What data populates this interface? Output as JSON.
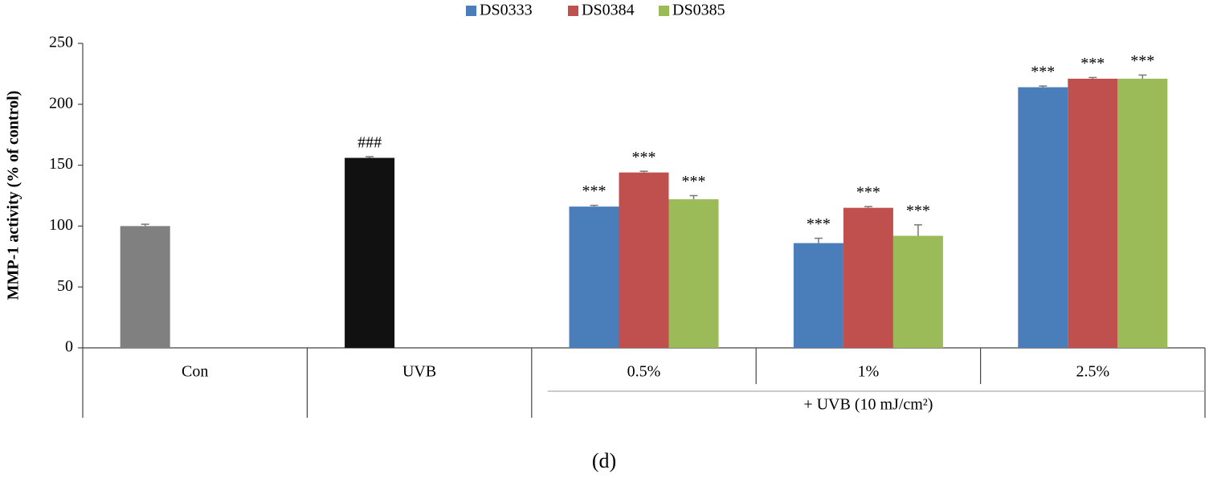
{
  "chart_data": {
    "type": "bar",
    "ylabel": "MMP-1 activity (% of control)",
    "categories": [
      "Con",
      "UVB",
      "0.5%",
      "1%",
      "2.5%"
    ],
    "group_label": "+ UVB (10 mJ/cm²)",
    "caption": "(d)",
    "baseline": {
      "values": [
        100,
        156,
        null,
        null,
        null
      ],
      "errors": [
        1.5,
        1,
        null,
        null,
        null
      ],
      "colors": [
        "#808080",
        "#111111",
        null,
        null,
        null
      ],
      "marks": [
        null,
        "###",
        null,
        null,
        null
      ]
    },
    "series": [
      {
        "name": "DS0333",
        "color": "#4a7ebb",
        "values": [
          null,
          null,
          116,
          86,
          214
        ],
        "errors": [
          null,
          null,
          1,
          4,
          1
        ],
        "marks": [
          null,
          null,
          "***",
          "***",
          "***"
        ]
      },
      {
        "name": "DS0384",
        "color": "#c0504d",
        "values": [
          null,
          null,
          144,
          115,
          221
        ],
        "errors": [
          null,
          null,
          1,
          1,
          1
        ],
        "marks": [
          null,
          null,
          "***",
          "***",
          "***"
        ]
      },
      {
        "name": "DS0385",
        "color": "#9bbb59",
        "values": [
          null,
          null,
          122,
          92,
          221
        ],
        "errors": [
          null,
          null,
          3,
          9,
          3
        ],
        "marks": [
          null,
          null,
          "***",
          "***",
          "***"
        ]
      }
    ],
    "ylim": [
      0,
      250
    ],
    "yticks": [
      0,
      50,
      100,
      150,
      200,
      250
    ],
    "legend": "top"
  }
}
